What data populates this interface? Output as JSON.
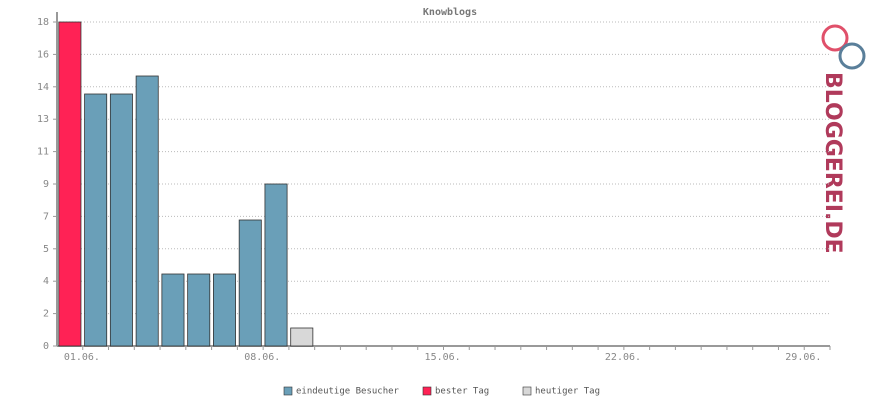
{
  "chart_data": {
    "type": "bar",
    "title": "Knowblogs",
    "logo": "BLOGGEREI.DE",
    "categories": [
      "01.06.",
      null,
      null,
      null,
      null,
      null,
      null,
      "08.06.",
      null,
      null,
      null,
      null,
      null,
      null,
      "15.06.",
      null,
      null,
      null,
      null,
      null,
      null,
      "22.06.",
      null,
      null,
      null,
      null,
      null,
      null,
      "29.06.",
      null
    ],
    "series": [
      {
        "name": "eindeutige Besucher",
        "color": "#6a9fb8",
        "values": [
          null,
          14,
          14,
          15,
          4,
          4,
          4,
          7,
          9,
          null,
          null,
          null,
          null,
          null,
          null,
          null,
          null,
          null,
          null,
          null,
          null,
          null,
          null,
          null,
          null,
          null,
          null,
          null,
          null,
          null
        ]
      },
      {
        "name": "bester Tag",
        "color": "#ff2255",
        "values": [
          18,
          null,
          null,
          null,
          null,
          null,
          null,
          null,
          null,
          null,
          null,
          null,
          null,
          null,
          null,
          null,
          null,
          null,
          null,
          null,
          null,
          null,
          null,
          null,
          null,
          null,
          null,
          null,
          null,
          null
        ]
      },
      {
        "name": "heutiger Tag",
        "color": "#d8d8d8",
        "values": [
          null,
          null,
          null,
          null,
          null,
          null,
          null,
          null,
          null,
          1,
          null,
          null,
          null,
          null,
          null,
          null,
          null,
          null,
          null,
          null,
          null,
          null,
          null,
          null,
          null,
          null,
          null,
          null,
          null,
          null
        ]
      }
    ],
    "ylim": [
      0,
      18
    ],
    "yticks": [
      0,
      {
        "value": 1.8,
        "label": "2"
      },
      {
        "value": 3.6,
        "label": "4"
      },
      {
        "value": 5.4,
        "label": "5"
      },
      {
        "value": 7.2,
        "label": "7"
      },
      9,
      {
        "value": 10.8,
        "label": "11"
      },
      {
        "value": 12.6,
        "label": "13"
      },
      {
        "value": 14.4,
        "label": "14"
      },
      {
        "value": 16.2,
        "label": "16"
      },
      18
    ],
    "grid": true
  }
}
